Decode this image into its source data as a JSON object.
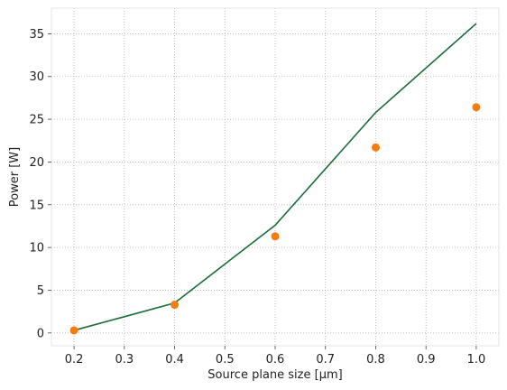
{
  "chart_data": {
    "type": "line",
    "xlabel": "Source plane size [μm]",
    "ylabel": "Power [W]",
    "xlim": [
      0.155,
      1.045
    ],
    "ylim": [
      -1.5,
      38.0
    ],
    "xticks": [
      "0.2",
      "0.3",
      "0.4",
      "0.5",
      "0.6",
      "0.7",
      "0.8",
      "0.9",
      "1.0"
    ],
    "yticks": [
      "0",
      "5",
      "10",
      "15",
      "20",
      "25",
      "30",
      "35"
    ],
    "grid": true,
    "grid_style": "dotted",
    "series": [
      {
        "kind": "line",
        "color": "#1a6b3a",
        "x": [
          0.2,
          0.4,
          0.6,
          0.8,
          1.0
        ],
        "y": [
          0.3,
          3.5,
          12.6,
          25.8,
          36.2
        ]
      },
      {
        "kind": "scatter",
        "color": "#f57c0e",
        "x": [
          0.2,
          0.4,
          0.6,
          0.8,
          1.0
        ],
        "y": [
          0.3,
          3.3,
          11.3,
          21.7,
          26.4
        ]
      }
    ]
  }
}
